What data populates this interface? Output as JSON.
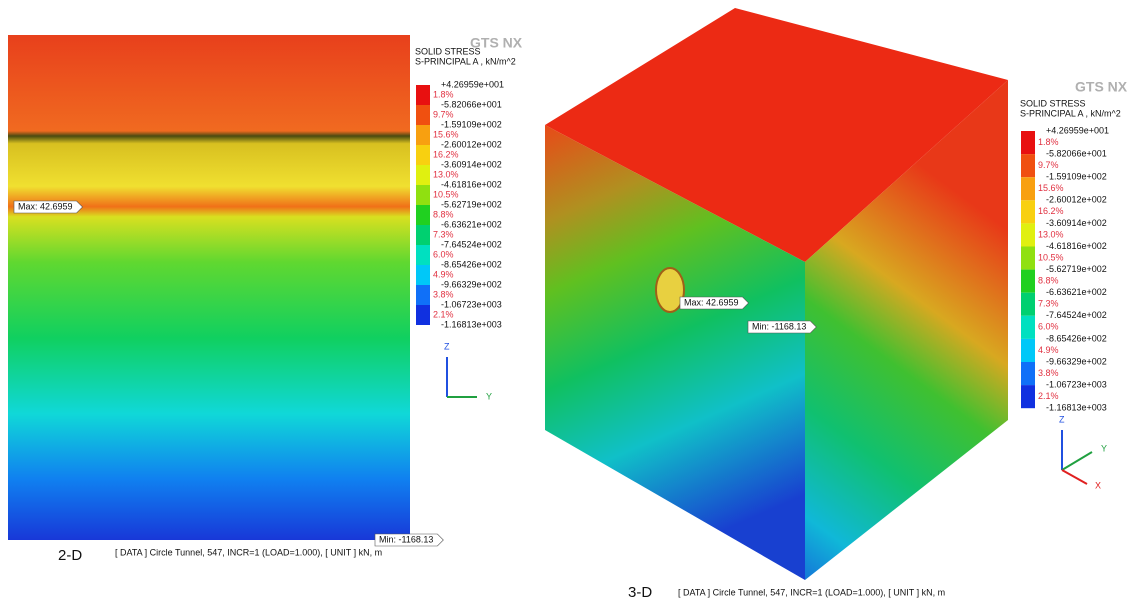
{
  "panels": [
    {
      "caption": "2-D",
      "logo": "GTS NX",
      "legend": {
        "title": "SOLID STRESS",
        "quantity": "S-PRINCIPAL A , kN/m^2",
        "values": [
          "+4.26959e+001",
          "-5.82066e+001",
          "-1.59109e+002",
          "-2.60012e+002",
          "-3.60914e+002",
          "-4.61816e+002",
          "-5.62719e+002",
          "-6.63621e+002",
          "-7.64524e+002",
          "-8.65426e+002",
          "-9.66329e+002",
          "-1.06723e+003",
          "-1.16813e+003"
        ],
        "percentages": [
          "1.8%",
          "9.7%",
          "15.6%",
          "16.2%",
          "13.0%",
          "10.5%",
          "8.8%",
          "7.3%",
          "6.0%",
          "4.9%",
          "3.8%",
          "2.1%"
        ]
      },
      "max_label": "Max: 42.6959",
      "min_label": "Min: -1168.13",
      "axes": [
        "Z",
        "Y"
      ],
      "footer": "[ DATA ] Circle Tunnel, 547, INCR=1 (LOAD=1.000), [ UNIT ] kN, m"
    },
    {
      "caption": "3-D",
      "logo": "GTS NX",
      "legend": {
        "title": "SOLID STRESS",
        "quantity": "S-PRINCIPAL A , kN/m^2",
        "values": [
          "+4.26959e+001",
          "-5.82066e+001",
          "-1.59109e+002",
          "-2.60012e+002",
          "-3.60914e+002",
          "-4.61816e+002",
          "-5.62719e+002",
          "-6.63621e+002",
          "-7.64524e+002",
          "-8.65426e+002",
          "-9.66329e+002",
          "-1.06723e+003",
          "-1.16813e+003"
        ],
        "percentages": [
          "1.8%",
          "9.7%",
          "15.6%",
          "16.2%",
          "13.0%",
          "10.5%",
          "8.8%",
          "7.3%",
          "6.0%",
          "4.9%",
          "3.8%",
          "2.1%"
        ]
      },
      "max_label": "Max: 42.6959",
      "min_label": "Min: -1168.13",
      "axes": [
        "Z",
        "Y",
        "X"
      ],
      "footer": "[ DATA ] Circle Tunnel, 547, INCR=1 (LOAD=1.000), [ UNIT ] kN, m"
    }
  ]
}
